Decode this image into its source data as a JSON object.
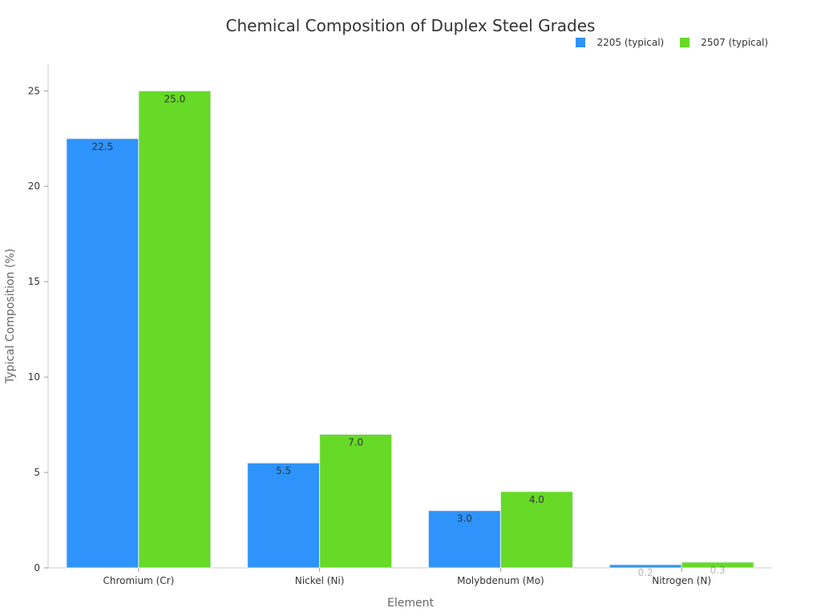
{
  "chart_data": {
    "type": "bar",
    "title": "Chemical Composition of Duplex Steel Grades",
    "xlabel": "Element",
    "ylabel": "Typical Composition (%)",
    "categories": [
      "Chromium (Cr)",
      "Nickel (Ni)",
      "Molybdenum (Mo)",
      "Nitrogen (N)"
    ],
    "series": [
      {
        "name": "2205 (typical)",
        "color": "#2e93fa",
        "values": [
          22.5,
          5.5,
          3.0,
          0.17
        ],
        "value_labels": [
          "22.5",
          "5.5",
          "3.0",
          "0.2"
        ]
      },
      {
        "name": "2507 (typical)",
        "color": "#66da26",
        "values": [
          25.0,
          7.0,
          4.0,
          0.3
        ],
        "value_labels": [
          "25.0",
          "7.0",
          "4.0",
          "0.3"
        ]
      }
    ],
    "ylim": [
      0,
      26.4
    ],
    "yticks": [
      0,
      5,
      10,
      15,
      20,
      25
    ],
    "ytick_labels": [
      "0",
      "5",
      "10",
      "15",
      "20",
      "25"
    ],
    "grid": false,
    "legend": "top-right"
  }
}
